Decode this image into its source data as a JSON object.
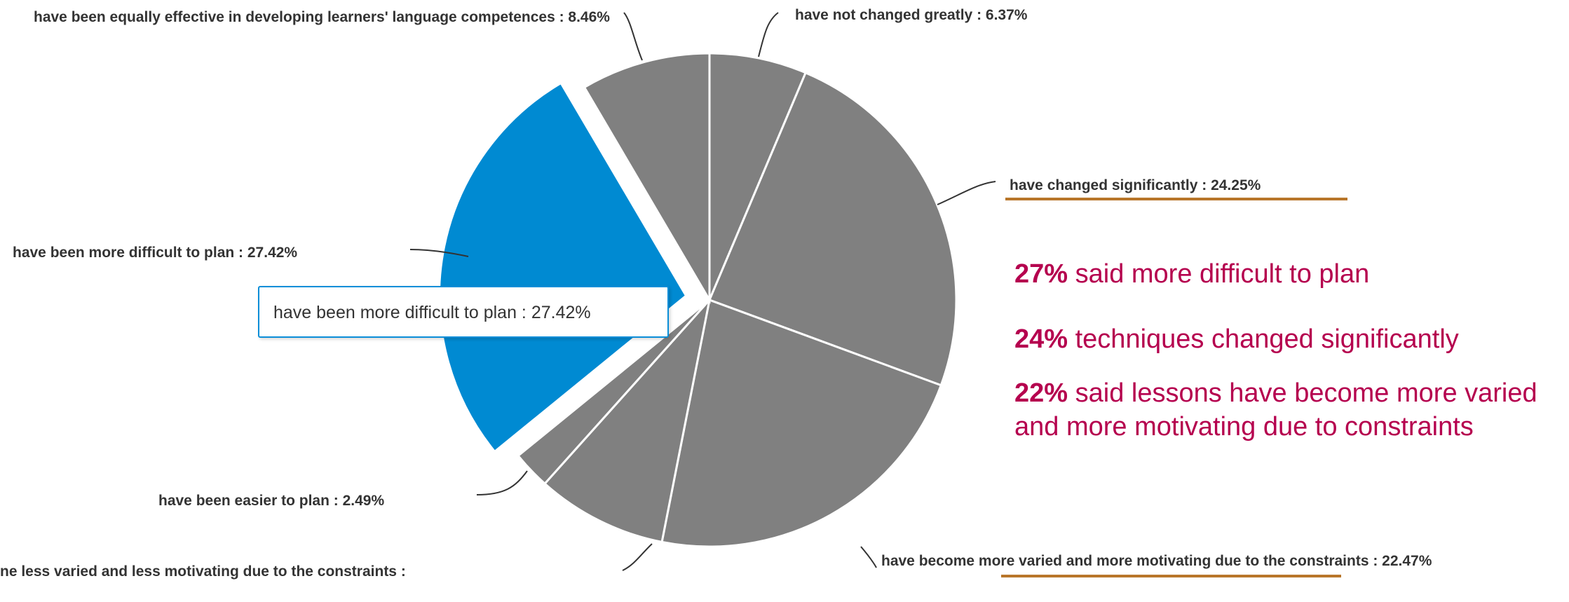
{
  "chart_data": {
    "type": "pie",
    "slices": [
      {
        "label": "have not changed greatly : 6.37%",
        "value": 6.37
      },
      {
        "label": "have changed significantly : 24.25%",
        "value": 24.25
      },
      {
        "label": "have become more varied and more motivating due to the constraints : 22.47%",
        "value": 22.47
      },
      {
        "label": "ne less varied and less motivating due to the constraints :",
        "value": 8.54
      },
      {
        "label": "have been easier to plan : 2.49%",
        "value": 2.49
      },
      {
        "label": "have been more difficult to plan : 27.42%",
        "value": 27.42,
        "exploded": true
      },
      {
        "label": "have been equally effective in developing learners' language competences : 8.46%",
        "value": 8.46
      }
    ],
    "colors": {
      "slice": "#808080",
      "highlight": "#008ad2",
      "separator": "#ffffff",
      "leader": "#333333"
    },
    "tooltip": "have been more difficult to plan : 27.42%"
  },
  "labels": {
    "not_changed": "have not changed greatly : 6.37%",
    "changed_significantly": "have changed significantly : 24.25%",
    "more_varied": "have become more varied and more motivating due to the constraints : 22.47%",
    "less_varied": "ne less varied and less motivating due to the constraints :",
    "easier": "have been easier to plan : 2.49%",
    "more_difficult": "have been more difficult to plan : 27.42%",
    "equally_effective": "have been equally effective in developing learners' language competences : 8.46%"
  },
  "summary": {
    "line1_pct": "27%",
    "line1_text": " said more difficult to plan",
    "line2_pct": "24%",
    "line2_text": " techniques changed significantly",
    "line3_pct": "22%",
    "line3_text": " said lessons have become more varied and more motivating due to constraints"
  },
  "colors": {
    "accent": "#b5004e",
    "underline": "#b8762a",
    "label_text": "#333333"
  }
}
